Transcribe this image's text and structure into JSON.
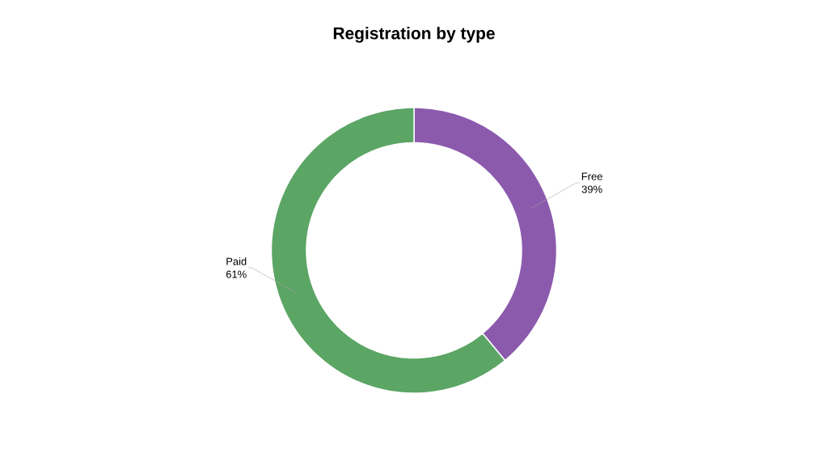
{
  "chart_data": {
    "type": "donut",
    "title": "Registration by type",
    "categories": [
      "Free",
      "Paid"
    ],
    "values": [
      39,
      61
    ],
    "colors": [
      "#8b5aad",
      "#5ba565"
    ],
    "value_labels": [
      "39%",
      "61%"
    ]
  }
}
